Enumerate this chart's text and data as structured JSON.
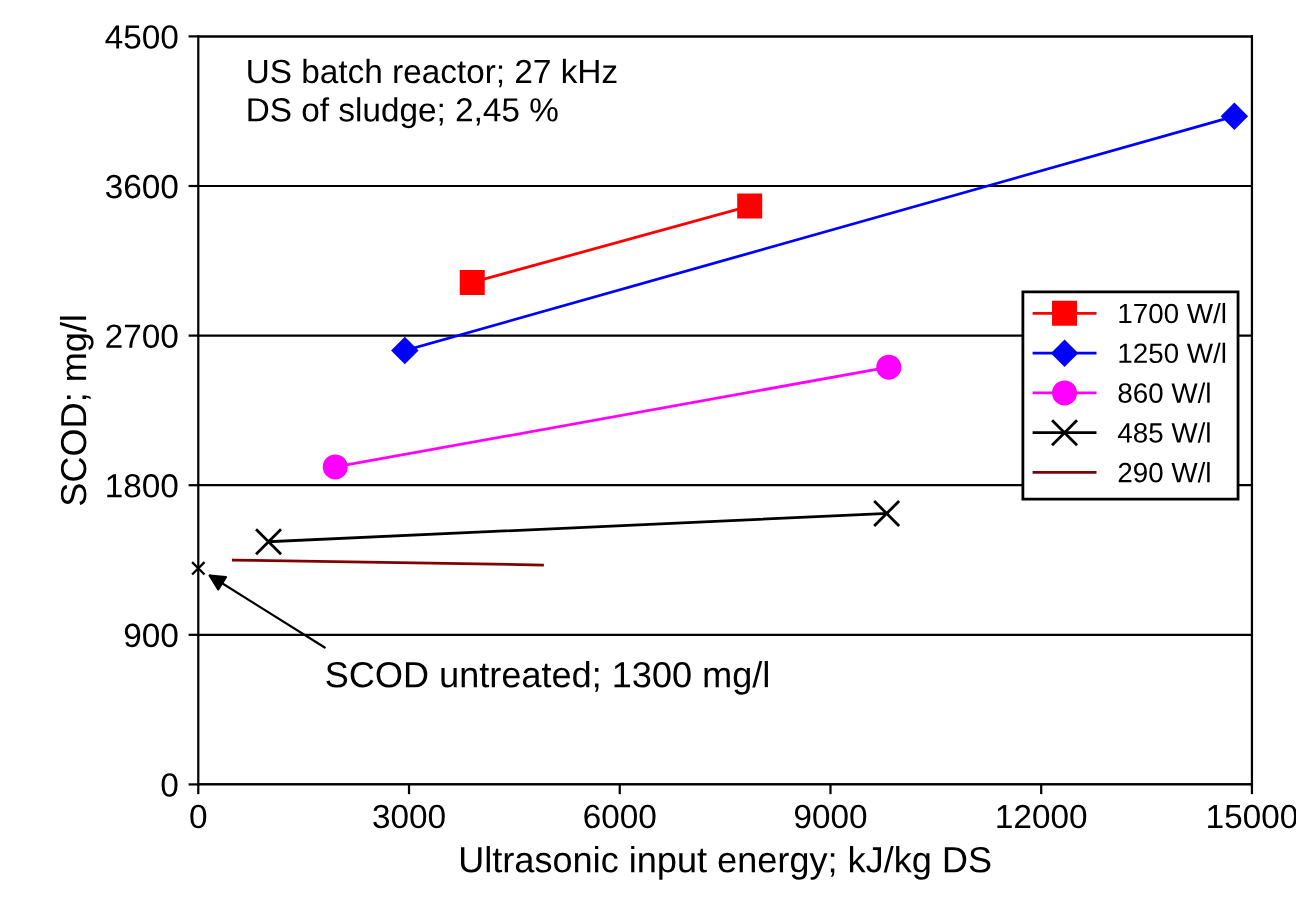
{
  "chart_data": {
    "type": "line",
    "xlabel": "Ultrasonic input energy; kJ/kg DS",
    "ylabel": "SCOD; mg/l",
    "xlim": [
      0,
      15000
    ],
    "xticks": [
      0,
      3000,
      6000,
      9000,
      12000,
      15000
    ],
    "ylim": [
      0,
      4500
    ],
    "yticks": [
      0,
      900,
      1800,
      2700,
      3600,
      4500
    ],
    "grid": "y",
    "legend": "right",
    "series": [
      {
        "name": "1700 W/l",
        "color": "#ff0000",
        "marker": "square",
        "x": [
          3900,
          7850
        ],
        "values": [
          3020,
          3480
        ]
      },
      {
        "name": "1250 W/l",
        "color": "#0000ff",
        "marker": "diamond",
        "x": [
          2940,
          14750
        ],
        "values": [
          2610,
          4020
        ]
      },
      {
        "name": "860 W/l",
        "color": "#ff00ff",
        "marker": "circle",
        "x": [
          1950,
          9830
        ],
        "values": [
          1910,
          2510
        ]
      },
      {
        "name": "485 W/l",
        "color": "#000000",
        "marker": "cross",
        "x": [
          1000,
          9800
        ],
        "values": [
          1460,
          1630
        ]
      },
      {
        "name": "290 W/l",
        "color": "#800000",
        "marker": "none",
        "x": [
          500,
          4900
        ],
        "values": [
          1350,
          1320
        ]
      },
      {
        "type": "scatter",
        "color": "#000000",
        "marker": "cross",
        "x": [
          0
        ],
        "values": [
          1300
        ]
      }
    ],
    "annotations": [
      "US batch reactor; 27 kHz\nDS of sludge; 2,45 %",
      {
        "text": "SCOD untreated; 1300 mg/l",
        "x": 0,
        "y": 1300
      }
    ]
  }
}
